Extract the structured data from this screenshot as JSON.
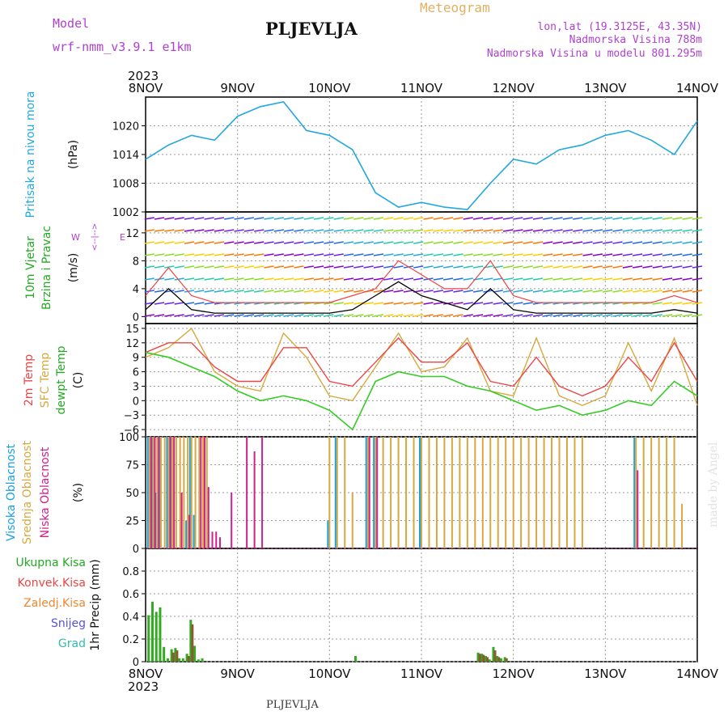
{
  "header": {
    "model_label": "Model",
    "model_name": "wrf-nmm_v3.9.1 e1km",
    "station": "PLJEVLJA",
    "product": "Meteogram",
    "coords": "lon,lat (19.3125E, 43.35N)",
    "elevation": "Nadmorska Visina 788m",
    "model_elevation": "Nadmorska Visina u modelu 801.295m",
    "year_top": "2023",
    "year_bottom": "2023",
    "footer_station": "PLJEVLJA",
    "watermark": "made by Angel"
  },
  "colors": {
    "pressure": "#22a7e0",
    "temp2m": "#ee4444",
    "sfc_temp": "#d8a840",
    "dewpoint": "#33cc22",
    "high_cloud": "#1aa0e0",
    "mid_cloud": "#d8a840",
    "low_cloud": "#d0208a",
    "total_precip": "#33aa22",
    "conv_precip": "#ee4444",
    "frozen_precip": "#ee8833",
    "snow": "#5555dd",
    "hail": "#33bbaa",
    "wind_speed_line": "#000000",
    "wind_gust_line": "#ee4444",
    "panel_label_purple": "#b040d0"
  },
  "chart_data": [
    {
      "type": "line",
      "title": "Pritisak na nivou mora",
      "ylabel": "(hPa)",
      "x": [
        0,
        6,
        12,
        18,
        24,
        30,
        36,
        42,
        48,
        54,
        60,
        66,
        72,
        78,
        84,
        90,
        96,
        102,
        108,
        114,
        120,
        126,
        132,
        138,
        144
      ],
      "ylim": [
        1002,
        1026
      ],
      "yticks": [
        1002,
        1008,
        1014,
        1020
      ],
      "series": [
        {
          "values": [
            1013,
            1016,
            1018,
            1017,
            1022,
            1024,
            1025,
            1019,
            1018,
            1015,
            1006,
            1003,
            1004,
            1003,
            1002.5,
            1008,
            1013,
            1012,
            1015,
            1016,
            1018,
            1019,
            1017,
            1014,
            1021
          ]
        }
      ]
    },
    {
      "type": "line",
      "title": "10m Vjetar Brzina i Pravac",
      "ylabel": "(m/s)",
      "direction_legend": [
        "W",
        "<--|-->",
        "E"
      ],
      "x": [
        0,
        6,
        12,
        18,
        24,
        30,
        36,
        42,
        48,
        54,
        60,
        66,
        72,
        78,
        84,
        90,
        96,
        102,
        108,
        114,
        120,
        126,
        132,
        138,
        144
      ],
      "ylim": [
        -1,
        15
      ],
      "yticks": [
        0,
        4,
        8,
        12
      ],
      "series": [
        {
          "values": [
            1,
            4,
            1,
            0.5,
            0.5,
            0.5,
            0.5,
            0.5,
            0.5,
            1,
            3,
            5,
            3,
            2,
            1,
            4,
            1,
            0.5,
            0.5,
            0.5,
            0.5,
            0.5,
            0.5,
            1,
            0.5
          ]
        },
        {
          "values": [
            3,
            7,
            3,
            2,
            2,
            2,
            2,
            2,
            2,
            3,
            4,
            8,
            6,
            4,
            4,
            8,
            3,
            2,
            2,
            2,
            2,
            2,
            2,
            3,
            2
          ]
        }
      ]
    },
    {
      "type": "line",
      "title": "Temperature",
      "legend": [
        "2m Temp",
        "SFC Temp",
        "dewpt Temp"
      ],
      "ylabel": "(C)",
      "x": [
        0,
        6,
        12,
        18,
        24,
        30,
        36,
        42,
        48,
        54,
        60,
        66,
        72,
        78,
        84,
        90,
        96,
        102,
        108,
        114,
        120,
        126,
        132,
        138,
        144
      ],
      "ylim": [
        -7.5,
        16
      ],
      "yticks": [
        -6,
        -3,
        0,
        3,
        6,
        9,
        12,
        15
      ],
      "series": [
        {
          "name": "2m Temp",
          "values": [
            10,
            12,
            12,
            7,
            4,
            4,
            11,
            11,
            4,
            3,
            8,
            13,
            8,
            8,
            12,
            4,
            3,
            9,
            3,
            1,
            3,
            9,
            4,
            12,
            4
          ]
        },
        {
          "name": "SFC Temp",
          "values": [
            9,
            11,
            15,
            6,
            3,
            2,
            14,
            9,
            1,
            0,
            7,
            14,
            6,
            7,
            13,
            2,
            1,
            13,
            1,
            -1,
            1,
            12,
            2,
            13,
            -1
          ]
        },
        {
          "name": "dewpt Temp",
          "values": [
            10,
            9,
            7,
            5,
            2,
            0,
            1,
            0,
            -2,
            -6,
            4,
            6,
            5,
            5,
            3,
            2,
            0,
            -2,
            -1,
            -3,
            -2,
            0,
            -1,
            4,
            1
          ]
        }
      ]
    },
    {
      "type": "bar",
      "legend": [
        "Visoka Oblacnost",
        "Srednja Oblacnost",
        "Niska Oblacnost"
      ],
      "ylabel": "(%)",
      "x_hours": [
        1,
        2,
        3,
        4,
        5,
        6,
        7,
        8,
        9,
        10,
        11,
        12,
        13,
        14,
        15,
        16,
        17,
        18,
        19,
        20,
        21,
        22,
        24,
        26,
        28,
        30,
        34,
        36,
        48,
        50,
        52,
        54,
        58,
        60,
        62,
        64,
        66,
        68,
        70,
        72,
        74,
        76,
        78,
        80,
        82,
        84,
        86,
        88,
        90,
        92,
        94,
        96,
        98,
        100,
        102,
        104,
        106,
        108,
        110,
        112,
        114,
        116,
        118,
        120,
        122,
        124,
        126,
        128,
        130,
        132,
        134,
        136,
        138,
        140
      ],
      "ylim": [
        0,
        100
      ],
      "yticks": [
        0,
        25,
        50,
        75,
        100
      ],
      "series": [
        {
          "name": "Visoka Oblacnost",
          "values": [
            100,
            100,
            50,
            100,
            0,
            100,
            100,
            0,
            0,
            0,
            25,
            100,
            30,
            0,
            0,
            0,
            0,
            0,
            0,
            0,
            0,
            0,
            0,
            0,
            0,
            0,
            0,
            0,
            25,
            100,
            0,
            0,
            100,
            100,
            0,
            0,
            0,
            0,
            0,
            100,
            0,
            0,
            0,
            0,
            0,
            0,
            0,
            0,
            0,
            0,
            0,
            0,
            0,
            0,
            0,
            0,
            0,
            0,
            0,
            0,
            0,
            0,
            0,
            0,
            0,
            0,
            0,
            100,
            0,
            0,
            0,
            0,
            0,
            0
          ]
        },
        {
          "name": "Srednja Oblacnost",
          "values": [
            100,
            100,
            100,
            100,
            100,
            100,
            100,
            100,
            100,
            100,
            100,
            100,
            100,
            100,
            100,
            100,
            0,
            0,
            0,
            0,
            0,
            0,
            0,
            0,
            0,
            0,
            0,
            0,
            100,
            100,
            100,
            50,
            100,
            100,
            100,
            100,
            100,
            100,
            100,
            100,
            100,
            100,
            100,
            100,
            100,
            100,
            100,
            100,
            100,
            100,
            100,
            100,
            100,
            100,
            100,
            100,
            100,
            100,
            100,
            100,
            100,
            0,
            0,
            0,
            0,
            0,
            0,
            100,
            100,
            100,
            100,
            100,
            100,
            40
          ]
        },
        {
          "name": "Niska Oblacnost",
          "values": [
            100,
            100,
            100,
            0,
            0,
            100,
            100,
            0,
            50,
            0,
            30,
            0,
            0,
            100,
            100,
            55,
            15,
            15,
            10,
            0,
            0,
            50,
            0,
            100,
            87,
            100,
            0,
            0,
            0,
            0,
            0,
            0,
            100,
            100,
            0,
            0,
            0,
            0,
            0,
            0,
            0,
            0,
            0,
            0,
            0,
            0,
            0,
            0,
            0,
            0,
            0,
            0,
            0,
            0,
            0,
            0,
            0,
            0,
            0,
            0,
            0,
            0,
            0,
            0,
            0,
            0,
            0,
            70,
            0,
            0,
            0,
            0,
            0,
            0
          ]
        }
      ]
    },
    {
      "type": "bar",
      "legend": [
        "Ukupna Kisa",
        "Konvek.Kisa",
        "Zaledj.Kisa",
        "Snijeg",
        "Grad"
      ],
      "ylabel": "1hr Precip (mm)",
      "x_hours": [
        1,
        2,
        3,
        4,
        5,
        6,
        7,
        8,
        9,
        10,
        11,
        12,
        13,
        14,
        15,
        16,
        17,
        18,
        19,
        20,
        21,
        55,
        87,
        88,
        89,
        90,
        91,
        92,
        93,
        94,
        95,
        96
      ],
      "ylim": [
        0,
        1.0
      ],
      "yticks": [
        0,
        0.2,
        0.4,
        0.6,
        0.8
      ],
      "series": [
        {
          "name": "Ukupna Kisa",
          "values": [
            0.41,
            0.53,
            0.44,
            0.48,
            0.13,
            0.03,
            0.11,
            0.12,
            0.03,
            0.03,
            0.07,
            0.37,
            0.14,
            0.02,
            0.03,
            0.0,
            0.0,
            0.0,
            0.0,
            0.0,
            0.0,
            0.05,
            0.08,
            0.07,
            0.05,
            0.02,
            0.13,
            0.05,
            0.03,
            0.04,
            0.0,
            0.0
          ]
        },
        {
          "name": "Konvek.Kisa",
          "values": [
            0.0,
            0.0,
            0.0,
            0.0,
            0.0,
            0.0,
            0.08,
            0.1,
            0.0,
            0.0,
            0.05,
            0.33,
            0.0,
            0.0,
            0.0,
            0.0,
            0.0,
            0.0,
            0.0,
            0.0,
            0.0,
            0.0,
            0.07,
            0.06,
            0.04,
            0.0,
            0.1,
            0.04,
            0.0,
            0.03,
            0.0,
            0.0
          ]
        }
      ]
    },
    {
      "type": "line",
      "xaxis_ticks": [
        "8NOV",
        "9NOV",
        "10NOV",
        "11NOV",
        "12NOV",
        "13NOV",
        "14NOV"
      ]
    }
  ],
  "panel_labels": {
    "p1": [
      "Pritisak na nivou mora"
    ],
    "p1_unit": "(hPa)",
    "p2": [
      "10m Vjetar",
      "Brzina i Pravac"
    ],
    "p2_unit": "(m/s)",
    "p2_dir": [
      "W",
      "<--|-->",
      "E"
    ],
    "p3": [
      "2m Temp",
      "SFC Temp",
      "dewpt Temp"
    ],
    "p3_unit": "(C)",
    "p4": [
      "Visoka Oblacnost",
      "Srednja Oblacnost",
      "Niska Oblacnost"
    ],
    "p4_unit": "(%)",
    "p5": [
      "Ukupna Kisa",
      "Konvek.Kisa",
      "Zaledj.Kisa",
      "Snijeg",
      "Grad"
    ],
    "p5_unit": "1hr Precip (mm)"
  }
}
